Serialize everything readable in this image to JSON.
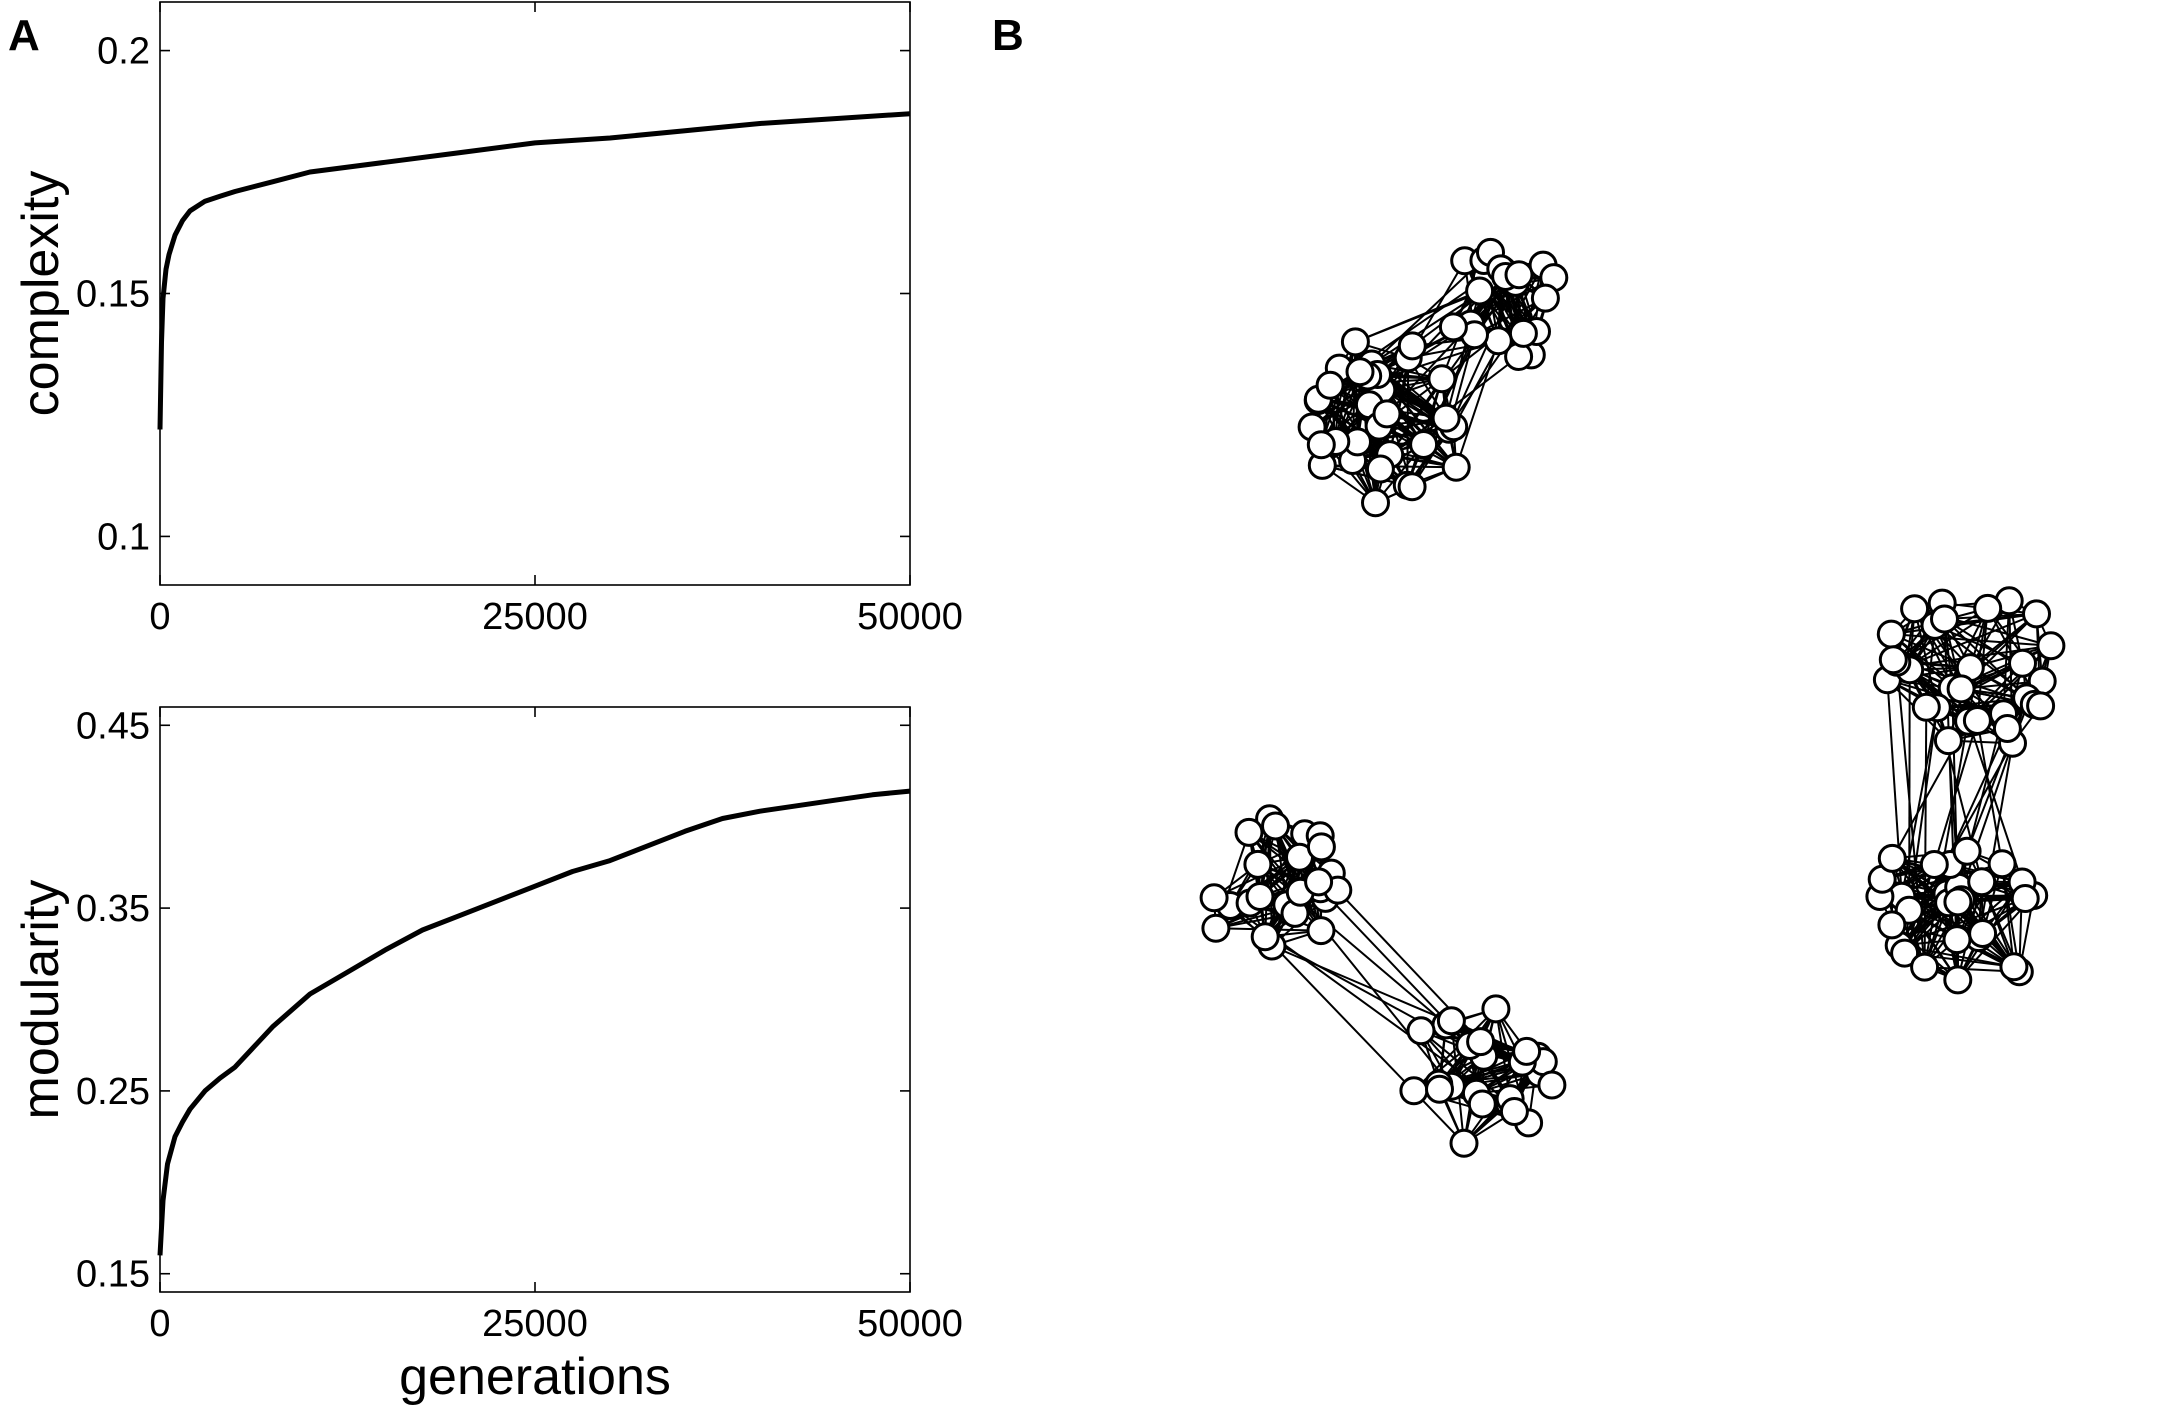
{
  "panels": {
    "a_label": "A",
    "b_label": "B"
  },
  "chart_data": [
    {
      "type": "line",
      "id": "complexity",
      "ylabel": "complexity",
      "xlabel": "",
      "xlim": [
        0,
        50000
      ],
      "ylim": [
        0.09,
        0.21
      ],
      "xticks": [
        0,
        25000,
        50000
      ],
      "xtick_labels": [
        "0",
        "25000",
        "50000"
      ],
      "yticks": [
        0.1,
        0.15,
        0.2
      ],
      "ytick_labels": [
        "0.1",
        "0.15",
        "0.2"
      ],
      "grid": false,
      "series": [
        {
          "color": "#000000",
          "x": [
            0,
            100,
            200,
            400,
            600,
            800,
            1000,
            1500,
            2000,
            3000,
            4000,
            5000,
            7500,
            10000,
            15000,
            20000,
            25000,
            30000,
            35000,
            40000,
            45000,
            50000
          ],
          "y": [
            0.122,
            0.14,
            0.149,
            0.155,
            0.158,
            0.16,
            0.162,
            0.165,
            0.167,
            0.169,
            0.17,
            0.171,
            0.173,
            0.175,
            0.177,
            0.179,
            0.181,
            0.182,
            0.1835,
            0.185,
            0.186,
            0.187
          ]
        }
      ]
    },
    {
      "type": "line",
      "id": "modularity",
      "ylabel": "modularity",
      "xlabel": "generations",
      "xlim": [
        0,
        50000
      ],
      "ylim": [
        0.14,
        0.46
      ],
      "xticks": [
        0,
        25000,
        50000
      ],
      "xtick_labels": [
        "0",
        "25000",
        "50000"
      ],
      "yticks": [
        0.15,
        0.25,
        0.35,
        0.45
      ],
      "ytick_labels": [
        "0.15",
        "0.25",
        "0.35",
        "0.45"
      ],
      "grid": false,
      "series": [
        {
          "color": "#000000",
          "x": [
            0,
            200,
            500,
            1000,
            1500,
            2000,
            3000,
            4000,
            5000,
            7500,
            10000,
            12500,
            15000,
            17500,
            20000,
            22500,
            25000,
            27500,
            30000,
            32500,
            35000,
            37500,
            40000,
            42500,
            45000,
            47500,
            50000
          ],
          "y": [
            0.16,
            0.19,
            0.21,
            0.225,
            0.233,
            0.24,
            0.25,
            0.257,
            0.263,
            0.285,
            0.303,
            0.315,
            0.327,
            0.338,
            0.346,
            0.354,
            0.362,
            0.37,
            0.376,
            0.384,
            0.392,
            0.399,
            0.403,
            0.406,
            0.409,
            0.412,
            0.414
          ]
        }
      ]
    }
  ],
  "network": {
    "node_fill": "#ffffff",
    "node_stroke": "#000000",
    "edge_color": "#000000",
    "module_count": 3
  }
}
